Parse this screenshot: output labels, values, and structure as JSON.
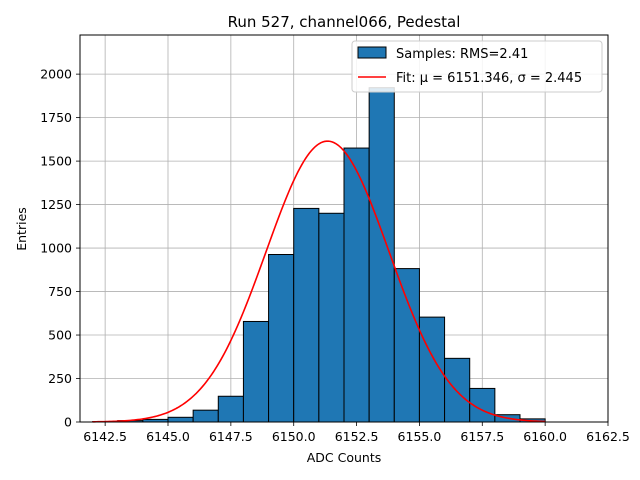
{
  "chart_data": {
    "type": "bar",
    "title": "Run 527, channel066, Pedestal",
    "xlabel": "ADC Counts",
    "ylabel": "Entries",
    "xlim": [
      6141.5,
      6162.5
    ],
    "ylim": [
      0,
      2225
    ],
    "xticks": [
      6142.5,
      6145.0,
      6147.5,
      6150.0,
      6152.5,
      6155.0,
      6157.5,
      6160.0,
      6162.5
    ],
    "xtick_labels": [
      "6142.5",
      "6145.0",
      "6147.5",
      "6150.0",
      "6152.5",
      "6155.0",
      "6157.5",
      "6160.0",
      "6162.5"
    ],
    "yticks": [
      0,
      250,
      500,
      750,
      1000,
      1250,
      1500,
      1750,
      2000
    ],
    "ytick_labels": [
      "0",
      "250",
      "500",
      "750",
      "1000",
      "1250",
      "1500",
      "1750",
      "2000"
    ],
    "grid": true,
    "legend_position": "upper-right",
    "bin_edges": [
      6142,
      6143,
      6144,
      6145,
      6146,
      6147,
      6148,
      6149,
      6150,
      6151,
      6152,
      6153,
      6154,
      6155,
      6156,
      6157,
      6158,
      6159,
      6160
    ],
    "series": [
      {
        "name": "Samples: RMS=2.41",
        "kind": "histogram",
        "color": "#1f77b4",
        "edgecolor": "#000000",
        "values": [
          2,
          8,
          15,
          27,
          68,
          148,
          578,
          963,
          1228,
          1200,
          1575,
          1922,
          882,
          603,
          366,
          193,
          42,
          18
        ]
      },
      {
        "name": "Fit: μ = 6151.346, σ = 2.445",
        "kind": "gaussian-fit",
        "color": "#ff0000",
        "mu": 6151.346,
        "sigma": 2.445,
        "amplitude": 1615,
        "x_range": [
          6142,
          6160
        ]
      }
    ]
  }
}
